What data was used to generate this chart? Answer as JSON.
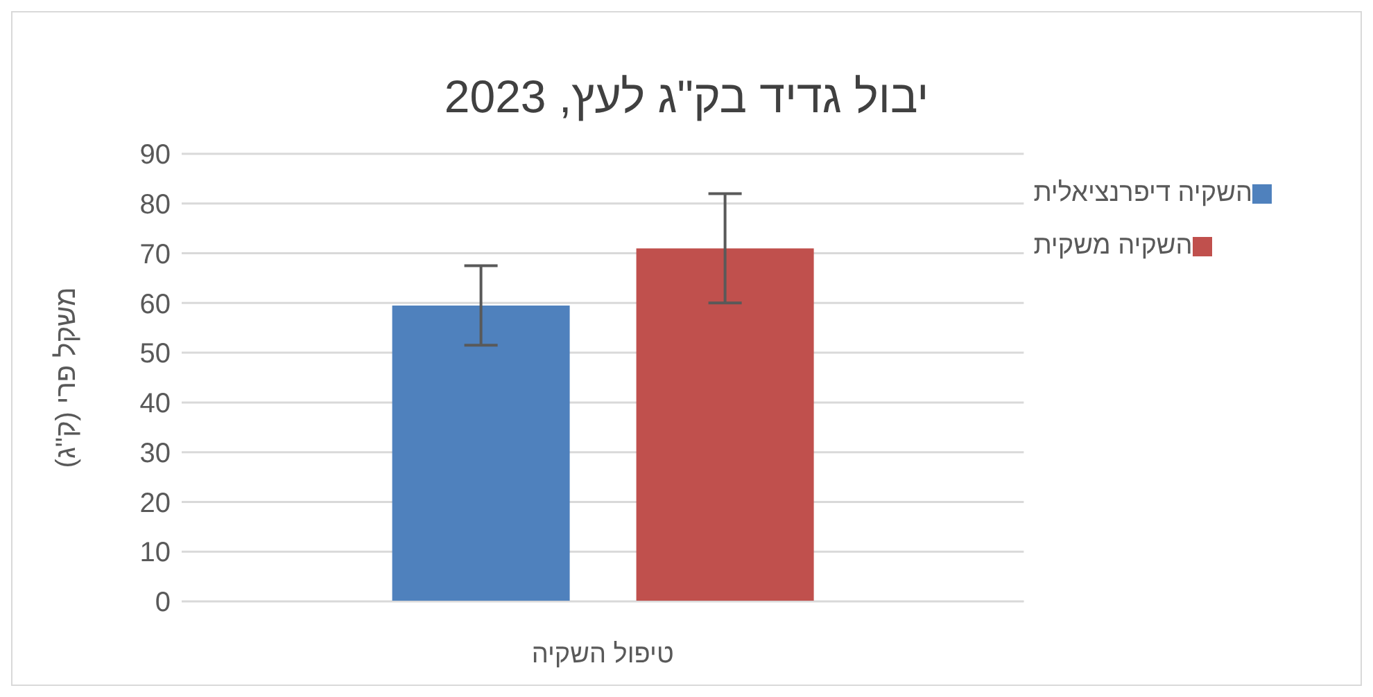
{
  "chart_data": {
    "type": "bar",
    "title": "יבול גדיד בק\"ג לעץ, 2023",
    "xlabel": "טיפול השקיה",
    "ylabel": "משקל פרי (ק\"ג)",
    "categories": [
      null
    ],
    "series": [
      {
        "name": "השקיה דיפרנציאלית",
        "color": "#4f81bd",
        "values": [
          59.5
        ],
        "errors": [
          8
        ]
      },
      {
        "name": "השקיה משקית",
        "color": "#c0504d",
        "values": [
          71
        ],
        "errors": [
          11
        ]
      }
    ],
    "ylim": [
      0,
      90
    ],
    "yticks": [
      0,
      10,
      20,
      30,
      40,
      50,
      60,
      70,
      80,
      90
    ],
    "grid": "y",
    "legend": "top right"
  }
}
